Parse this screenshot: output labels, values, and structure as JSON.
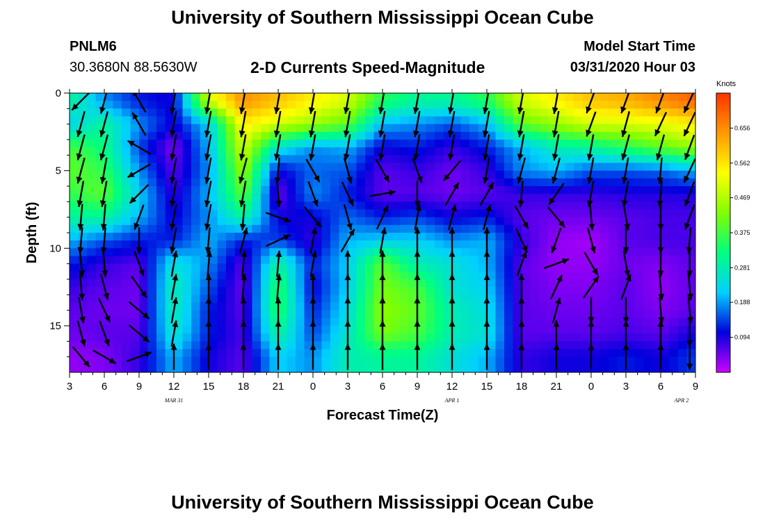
{
  "header": {
    "title": "University of Southern Mississippi Ocean Cube",
    "station": "PNLM6",
    "coordinates": "30.3680N 88.5630W",
    "plot_title": "2-D Currents Speed-Magnitude",
    "start_label": "Model Start Time",
    "start_value": "03/31/2020 Hour 03"
  },
  "footer": {
    "title": "University of Southern Mississippi Ocean Cube"
  },
  "colors": {
    "scale": [
      "#cc00ff",
      "#0000dd",
      "#00d0ff",
      "#00ff80",
      "#80ff00",
      "#ffff00",
      "#ff9900",
      "#ff3300"
    ],
    "arrow": "#000000"
  },
  "chart_data": {
    "type": "heatmap",
    "xlabel": "Forecast Time(Z)",
    "ylabel": "Depth (ft)",
    "x_ticks": [
      "3",
      "6",
      "9",
      "12",
      "15",
      "18",
      "21",
      "0",
      "3",
      "6",
      "9",
      "12",
      "15",
      "18",
      "21",
      "0",
      "3",
      "6",
      "9"
    ],
    "x_range_hours": [
      0,
      54
    ],
    "date_labels": [
      {
        "label": "MAR 31",
        "hour": 9
      },
      {
        "label": "APR 1",
        "hour": 33
      },
      {
        "label": "APR 2",
        "hour": 57
      }
    ],
    "y_ticks": [
      0,
      5,
      10,
      15
    ],
    "ylim": [
      0,
      18
    ],
    "y_inverted": true,
    "colorbar": {
      "unit": "Knots",
      "ticks": [
        "0.656",
        "0.562",
        "0.469",
        "0.375",
        "0.281",
        "0.188",
        "0.094"
      ],
      "min": 0,
      "max": 0.75
    },
    "depth_rows": [
      0.5,
      2,
      3.5,
      5,
      6.5,
      8,
      9.5,
      11,
      12.5,
      14,
      15.5,
      17
    ],
    "speed_grid_hours": [
      0,
      3,
      6,
      9,
      12,
      15,
      18,
      21,
      24,
      27,
      30,
      33,
      36,
      39,
      42,
      45,
      48,
      51,
      54
    ],
    "speed_grid": [
      [
        0.3,
        0.18,
        0.12,
        0.1,
        0.5,
        0.65,
        0.6,
        0.55,
        0.5,
        0.35,
        0.3,
        0.3,
        0.35,
        0.5,
        0.55,
        0.6,
        0.62,
        0.66,
        0.7
      ],
      [
        0.22,
        0.3,
        0.18,
        0.1,
        0.22,
        0.55,
        0.5,
        0.45,
        0.4,
        0.2,
        0.18,
        0.15,
        0.2,
        0.4,
        0.45,
        0.5,
        0.5,
        0.52,
        0.55
      ],
      [
        0.38,
        0.32,
        0.14,
        0.04,
        0.2,
        0.5,
        0.25,
        0.18,
        0.2,
        0.1,
        0.12,
        0.08,
        0.12,
        0.2,
        0.28,
        0.3,
        0.35,
        0.4,
        0.45
      ],
      [
        0.4,
        0.36,
        0.18,
        0.06,
        0.18,
        0.45,
        0.1,
        0.16,
        0.15,
        0.06,
        0.08,
        0.05,
        0.08,
        0.18,
        0.2,
        0.15,
        0.15,
        0.16,
        0.2
      ],
      [
        0.36,
        0.4,
        0.22,
        0.08,
        0.2,
        0.4,
        0.05,
        0.18,
        0.12,
        0.06,
        0.06,
        0.05,
        0.06,
        0.08,
        0.08,
        0.08,
        0.09,
        0.09,
        0.09
      ],
      [
        0.3,
        0.3,
        0.2,
        0.1,
        0.18,
        0.3,
        0.1,
        0.1,
        0.16,
        0.12,
        0.14,
        0.1,
        0.12,
        0.06,
        0.05,
        0.05,
        0.06,
        0.07,
        0.07
      ],
      [
        0.2,
        0.15,
        0.12,
        0.12,
        0.2,
        0.12,
        0.14,
        0.08,
        0.2,
        0.22,
        0.22,
        0.18,
        0.2,
        0.08,
        0.03,
        0.02,
        0.06,
        0.07,
        0.07
      ],
      [
        0.12,
        0.08,
        0.06,
        0.25,
        0.18,
        0.06,
        0.3,
        0.12,
        0.22,
        0.4,
        0.28,
        0.25,
        0.2,
        0.06,
        0.03,
        0.03,
        0.05,
        0.04,
        0.06
      ],
      [
        0.08,
        0.06,
        0.05,
        0.28,
        0.15,
        0.05,
        0.35,
        0.1,
        0.22,
        0.42,
        0.38,
        0.25,
        0.22,
        0.06,
        0.04,
        0.04,
        0.06,
        0.03,
        0.06
      ],
      [
        0.06,
        0.05,
        0.05,
        0.28,
        0.12,
        0.06,
        0.35,
        0.12,
        0.24,
        0.44,
        0.4,
        0.28,
        0.24,
        0.06,
        0.05,
        0.05,
        0.06,
        0.04,
        0.06
      ],
      [
        0.05,
        0.06,
        0.06,
        0.26,
        0.12,
        0.07,
        0.3,
        0.14,
        0.26,
        0.42,
        0.38,
        0.28,
        0.25,
        0.06,
        0.06,
        0.06,
        0.07,
        0.06,
        0.1
      ],
      [
        0.03,
        0.04,
        0.08,
        0.2,
        0.1,
        0.06,
        0.22,
        0.18,
        0.28,
        0.3,
        0.3,
        0.25,
        0.2,
        0.08,
        0.1,
        0.1,
        0.12,
        0.1,
        0.14
      ]
    ],
    "vector_hours": [
      1,
      3,
      6,
      9,
      12,
      15,
      18,
      21,
      24,
      27,
      30,
      33,
      36,
      39,
      42,
      45,
      48,
      51,
      53.5
    ],
    "vector_direction_deg": [
      [
        225,
        195,
        330,
        190,
        190,
        190,
        190,
        190,
        190,
        190,
        190,
        190,
        190,
        190,
        190,
        200,
        200,
        200,
        205
      ],
      [
        195,
        195,
        330,
        190,
        190,
        190,
        190,
        190,
        190,
        190,
        190,
        190,
        190,
        190,
        190,
        200,
        195,
        205,
        205
      ],
      [
        195,
        195,
        300,
        190,
        190,
        190,
        190,
        190,
        190,
        190,
        190,
        190,
        190,
        190,
        190,
        190,
        195,
        195,
        200
      ],
      [
        195,
        190,
        240,
        190,
        190,
        195,
        185,
        150,
        165,
        150,
        160,
        220,
        190,
        195,
        195,
        190,
        190,
        185,
        205
      ],
      [
        190,
        190,
        225,
        190,
        190,
        190,
        175,
        160,
        155,
        80,
        180,
        30,
        30,
        185,
        215,
        190,
        190,
        185,
        200
      ],
      [
        185,
        185,
        200,
        190,
        190,
        185,
        110,
        140,
        165,
        25,
        10,
        15,
        15,
        150,
        140,
        175,
        170,
        180,
        200
      ],
      [
        185,
        185,
        180,
        190,
        185,
        15,
        65,
        10,
        30,
        10,
        0,
        0,
        0,
        155,
        200,
        165,
        180,
        180,
        185
      ],
      [
        175,
        175,
        160,
        10,
        5,
        5,
        5,
        10,
        0,
        0,
        0,
        0,
        0,
        20,
        70,
        150,
        170,
        180,
        180
      ],
      [
        175,
        165,
        145,
        10,
        0,
        5,
        5,
        0,
        0,
        0,
        0,
        0,
        0,
        0,
        25,
        35,
        20,
        175,
        175
      ],
      [
        170,
        155,
        130,
        10,
        0,
        0,
        0,
        0,
        0,
        0,
        0,
        0,
        0,
        0,
        15,
        180,
        180,
        175,
        175
      ],
      [
        165,
        160,
        130,
        10,
        0,
        0,
        0,
        0,
        0,
        0,
        0,
        0,
        0,
        0,
        0,
        0,
        0,
        0,
        180
      ],
      [
        140,
        120,
        70,
        0,
        0,
        0,
        0,
        0,
        0,
        0,
        0,
        0,
        0,
        0,
        0,
        0,
        0,
        0,
        180
      ]
    ]
  }
}
